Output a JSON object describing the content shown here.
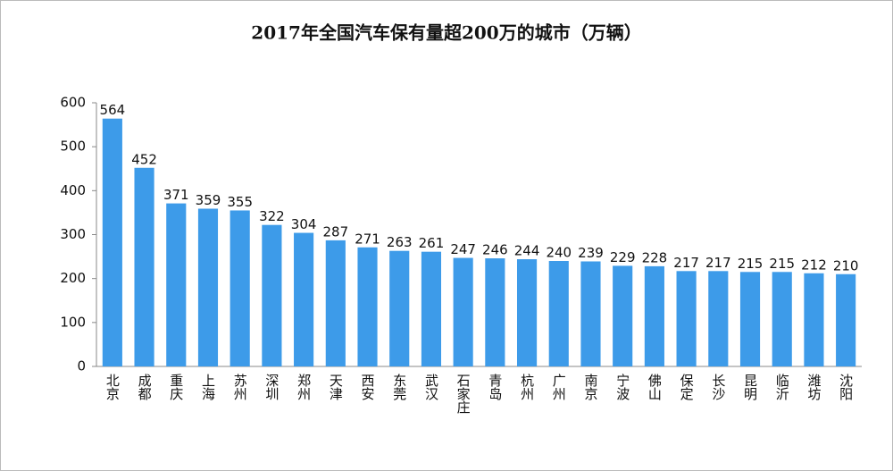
{
  "chart_data": {
    "type": "bar",
    "title": "2017年全国汽车保有量超200万的城市（万辆）",
    "categories": [
      "北京",
      "成都",
      "重庆",
      "上海",
      "苏州",
      "深圳",
      "郑州",
      "天津",
      "西安",
      "东莞",
      "武汉",
      "石家庄",
      "青岛",
      "杭州",
      "广州",
      "南京",
      "宁波",
      "佛山",
      "保定",
      "长沙",
      "昆明",
      "临沂",
      "潍坊",
      "沈阳"
    ],
    "values": [
      564,
      452,
      371,
      359,
      355,
      322,
      304,
      287,
      271,
      263,
      261,
      247,
      246,
      244,
      240,
      239,
      229,
      228,
      217,
      217,
      215,
      215,
      212,
      210
    ],
    "color": "#3d9be9",
    "ylim": [
      0,
      600
    ],
    "yticks": [
      0,
      100,
      200,
      300,
      400,
      500,
      600
    ],
    "grid": false
  }
}
